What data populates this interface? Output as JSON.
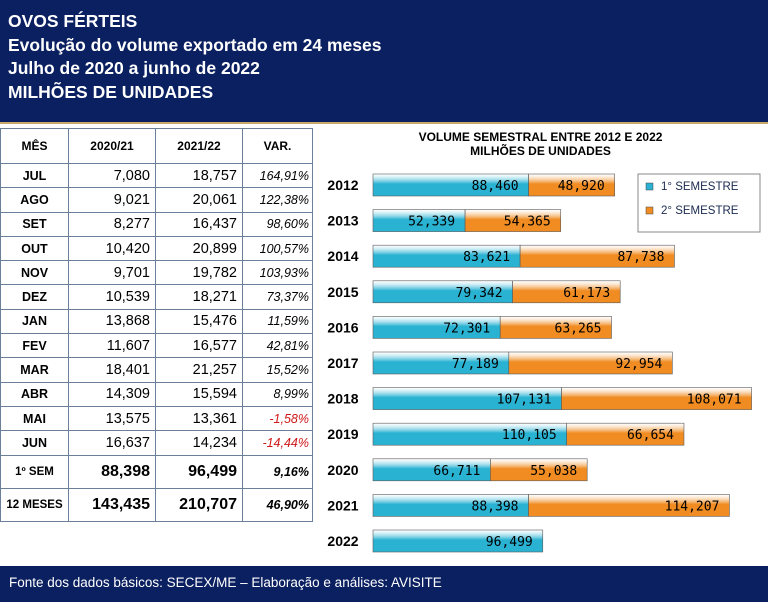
{
  "header": {
    "line1": "OVOS FÉRTEIS",
    "line2": "Evolução do volume exportado em 24 meses",
    "line3": "Julho de 2020 a junho de 2022",
    "line4": "MILHÕES DE UNIDADES"
  },
  "table": {
    "columns": [
      "MÊS",
      "2020/21",
      "2021/22",
      "VAR."
    ],
    "rows": [
      {
        "month": "JUL",
        "a": "7,080",
        "b": "18,757",
        "var": "164,91%",
        "negative": false
      },
      {
        "month": "AGO",
        "a": "9,021",
        "b": "20,061",
        "var": "122,38%",
        "negative": false
      },
      {
        "month": "SET",
        "a": "8,277",
        "b": "16,437",
        "var": "98,60%",
        "negative": false
      },
      {
        "month": "OUT",
        "a": "10,420",
        "b": "20,899",
        "var": "100,57%",
        "negative": false
      },
      {
        "month": "NOV",
        "a": "9,701",
        "b": "19,782",
        "var": "103,93%",
        "negative": false
      },
      {
        "month": "DEZ",
        "a": "10,539",
        "b": "18,271",
        "var": "73,37%",
        "negative": false
      },
      {
        "month": "JAN",
        "a": "13,868",
        "b": "15,476",
        "var": "11,59%",
        "negative": false
      },
      {
        "month": "FEV",
        "a": "11,607",
        "b": "16,577",
        "var": "42,81%",
        "negative": false
      },
      {
        "month": "MAR",
        "a": "18,401",
        "b": "21,257",
        "var": "15,52%",
        "negative": false
      },
      {
        "month": "ABR",
        "a": "14,309",
        "b": "15,594",
        "var": "8,99%",
        "negative": false
      },
      {
        "month": "MAI",
        "a": "13,575",
        "b": "13,361",
        "var": "-1,58%",
        "negative": true
      },
      {
        "month": "JUN",
        "a": "16,637",
        "b": "14,234",
        "var": "-14,44%",
        "negative": true
      }
    ],
    "totals": [
      {
        "month": "1º SEM",
        "a": "88,398",
        "b": "96,499",
        "var": "9,16%"
      },
      {
        "month": "12 MESES",
        "a": "143,435",
        "b": "210,707",
        "var": "46,90%"
      }
    ]
  },
  "chart_data": {
    "type": "bar",
    "orientation": "horizontal",
    "stacked": true,
    "title": "VOLUME SEMESTRAL ENTRE 2012 E 2022",
    "subtitle": "MILHÕES DE UNIDADES",
    "categories": [
      "2012",
      "2013",
      "2014",
      "2015",
      "2016",
      "2017",
      "2018",
      "2019",
      "2020",
      "2021",
      "2022"
    ],
    "series": [
      {
        "name": "1° SEMESTRE",
        "color": "#29b2d2",
        "values": [
          88.46,
          52.339,
          83.621,
          79.342,
          72.301,
          77.189,
          107.131,
          110.105,
          66.711,
          88.398,
          96.499
        ],
        "labels": [
          "88,460",
          "52,339",
          "83,621",
          "79,342",
          "72,301",
          "77,189",
          "107,131",
          "110,105",
          "66,711",
          "88,398",
          "96,499"
        ]
      },
      {
        "name": "2° SEMESTRE",
        "color": "#f08c22",
        "values": [
          48.92,
          54.365,
          87.738,
          61.173,
          63.265,
          92.954,
          108.071,
          66.654,
          55.038,
          114.207,
          null
        ],
        "labels": [
          "48,920",
          "54,365",
          "87,738",
          "61,173",
          "63,265",
          "92,954",
          "108,071",
          "66,654",
          "55,038",
          "114,207",
          ""
        ]
      }
    ],
    "xlim": [
      0,
      216
    ],
    "legend": "top-right"
  },
  "footer": {
    "text": "Fonte dos dados básicos: SECEX/ME – Elaboração e análises: AVISITE"
  }
}
